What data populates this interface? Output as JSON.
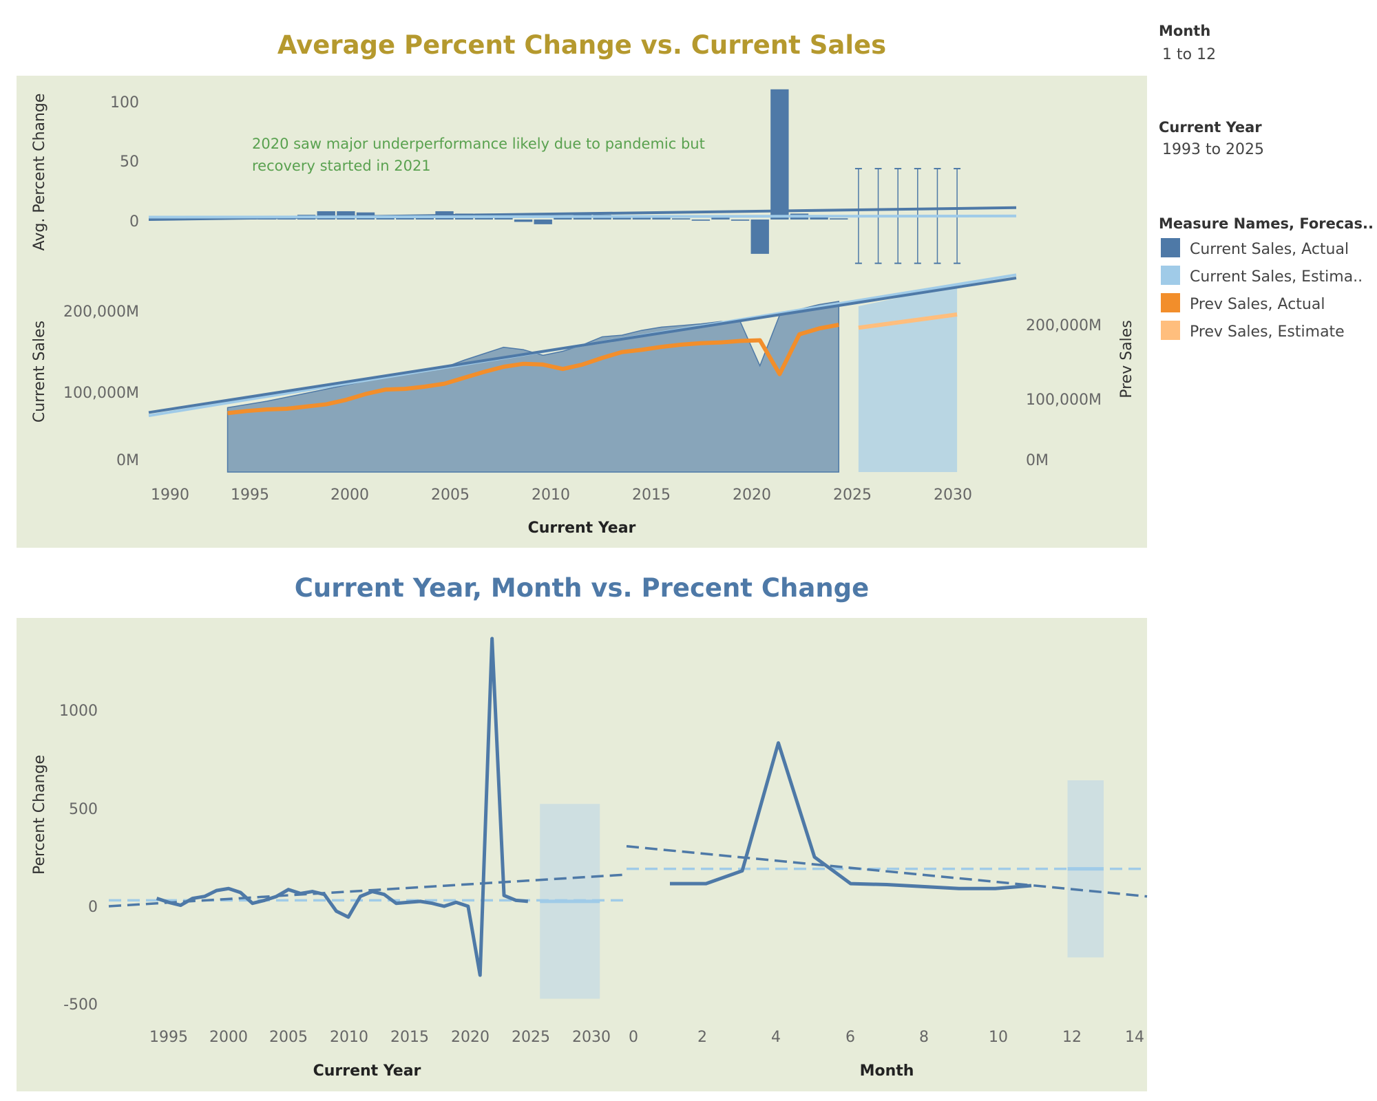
{
  "colors": {
    "panel_bg": "#e7ecd9",
    "title1": "#b5992e",
    "title2": "#4e79a7",
    "annotation": "#59a14f",
    "current_actual": "#4e79a7",
    "current_estimate": "#a0cbe8",
    "prev_actual": "#f28e2b",
    "prev_estimate": "#ffbe7d",
    "forecast_band": "#c3dae4"
  },
  "filters": {
    "month_title": "Month",
    "month_value": "1 to 12",
    "year_title": "Current Year",
    "year_value": "1993 to 2025"
  },
  "legend": {
    "title": "Measure Names, Forecas..",
    "items": [
      {
        "label": "Current Sales, Actual",
        "color": "#4e79a7"
      },
      {
        "label": "Current Sales, Estima..",
        "color": "#a0cbe8"
      },
      {
        "label": "Prev Sales, Actual",
        "color": "#f28e2b"
      },
      {
        "label": "Prev Sales, Estimate",
        "color": "#ffbe7d"
      }
    ]
  },
  "chart1": {
    "title": "Average Percent Change vs. Current Sales",
    "annotation_line1": "2020 saw major underperformance likely due to pandemic but",
    "annotation_line2": "recovery started in 2021",
    "top_ylabel": "Avg. Percent Change",
    "top_yticks": [
      "100",
      "50",
      "0"
    ],
    "bottom_ylabel": "Current Sales",
    "bottom_yticks": [
      "200,000M",
      "100,000M",
      "0M"
    ],
    "right_ylabel": "Prev Sales",
    "right_yticks": [
      "200,000M",
      "100,000M",
      "0M"
    ],
    "xlabel": "Current Year",
    "xticks": [
      "1990",
      "1995",
      "2000",
      "2005",
      "2010",
      "2015",
      "2020",
      "2025",
      "2030"
    ]
  },
  "chart2": {
    "title": "Current Year, Month  vs. Precent Change",
    "ylabel": "Percent Change",
    "yticks": [
      "1000",
      "500",
      "0",
      "-500"
    ],
    "left_xlabel": "Current Year",
    "left_xticks": [
      "1995",
      "2000",
      "2005",
      "2010",
      "2015",
      "2020",
      "2025",
      "2030"
    ],
    "right_xlabel": "Month",
    "right_xticks": [
      "0",
      "2",
      "4",
      "6",
      "8",
      "10",
      "12",
      "14"
    ]
  },
  "chart_data": [
    {
      "type": "bar",
      "title": "Average Percent Change vs. Current Sales",
      "panel": "top",
      "xlabel": "Current Year",
      "ylabel": "Avg. Percent Change",
      "xlim": [
        1989,
        2033
      ],
      "ylim": [
        -50,
        120
      ],
      "years": [
        1993,
        1994,
        1995,
        1996,
        1997,
        1998,
        1999,
        2000,
        2001,
        2002,
        2003,
        2004,
        2005,
        2006,
        2007,
        2008,
        2009,
        2010,
        2011,
        2012,
        2013,
        2014,
        2015,
        2016,
        2017,
        2018,
        2019,
        2020,
        2021,
        2022,
        2023,
        2024
      ],
      "avg_percent_change": [
        3,
        2,
        1,
        3,
        4,
        7,
        7,
        6,
        3,
        3,
        4,
        7,
        5,
        5,
        4,
        -2,
        -4,
        3,
        5,
        4,
        3,
        2,
        2,
        1,
        -1,
        2,
        -1,
        -29,
        110,
        5,
        2,
        1
      ],
      "forecast_years": [
        2025,
        2026,
        2027,
        2028,
        2029,
        2030
      ],
      "forecast_interval": [
        -37,
        43
      ],
      "series": [
        {
          "name": "Current Sales, Actual",
          "trend": [
            [
              1989,
              0
            ],
            [
              2033,
              10
            ]
          ]
        },
        {
          "name": "Current Sales, Estima..",
          "trend": [
            [
              1989,
              2
            ],
            [
              2033,
              3
            ]
          ]
        }
      ]
    },
    {
      "type": "area",
      "title": "Average Percent Change vs. Current Sales",
      "panel": "bottom",
      "xlabel": "Current Year",
      "ylabel": "Current Sales",
      "y2label": "Prev Sales",
      "units": "M",
      "xlim": [
        1989,
        2033
      ],
      "ylim": [
        0,
        232000
      ],
      "y2lim": [
        0,
        267000
      ],
      "series": [
        {
          "name": "Current Sales, Actual",
          "x": [
            1993,
            1994,
            1995,
            1996,
            1997,
            1998,
            1999,
            2000,
            2001,
            2002,
            2003,
            2004,
            2005,
            2006,
            2007,
            2008,
            2009,
            2010,
            2011,
            2012,
            2013,
            2014,
            2015,
            2016,
            2017,
            2018,
            2019,
            2020,
            2021,
            2022,
            2023,
            2024
          ],
          "y": [
            80000,
            84000,
            88000,
            93000,
            98000,
            103000,
            108000,
            113000,
            118000,
            122000,
            126000,
            130000,
            139000,
            147000,
            155000,
            152000,
            145000,
            150000,
            158000,
            168000,
            170000,
            176000,
            180000,
            182000,
            184000,
            187000,
            187000,
            132000,
            195000,
            202000,
            208000,
            212000
          ]
        },
        {
          "name": "Current Sales, Estima..",
          "x": [
            2025,
            2030
          ],
          "y": [
            206000,
            232000
          ],
          "band_low": [
            0,
            0
          ]
        },
        {
          "name": "Prev Sales, Actual",
          "x": [
            1993,
            1994,
            1995,
            1996,
            1997,
            1998,
            1999,
            2000,
            2001,
            2002,
            2003,
            2004,
            2005,
            2006,
            2007,
            2008,
            2009,
            2010,
            2011,
            2012,
            2013,
            2014,
            2015,
            2016,
            2017,
            2018,
            2019,
            2020,
            2021,
            2022,
            2023,
            2024
          ],
          "y": [
            80000,
            83000,
            85000,
            86000,
            89000,
            92000,
            98000,
            106000,
            112000,
            113000,
            116000,
            120000,
            128000,
            136000,
            143000,
            147000,
            146000,
            140000,
            146000,
            155000,
            163000,
            166000,
            170000,
            173000,
            175000,
            176000,
            178000,
            179000,
            133000,
            187000,
            195000,
            200000
          ]
        },
        {
          "name": "Prev Sales, Estimate",
          "x": [
            2025,
            2030
          ],
          "y": [
            196000,
            214000
          ]
        }
      ],
      "trend": [
        [
          1989,
          74000
        ],
        [
          2033,
          241000
        ]
      ],
      "trend_estimate": [
        [
          1989,
          70000
        ],
        [
          2033,
          245000
        ]
      ]
    },
    {
      "type": "line",
      "title": "Current Year, Month  vs. Precent Change",
      "xlabel": "Current Year",
      "ylabel": "Percent Change",
      "xlim": [
        1989,
        2032
      ],
      "ylim": [
        -580,
        1380
      ],
      "x": [
        1993,
        1994,
        1995,
        1996,
        1997,
        1998,
        1999,
        2000,
        2001,
        2002,
        2003,
        2004,
        2005,
        2006,
        2007,
        2008,
        2009,
        2010,
        2011,
        2012,
        2013,
        2014,
        2015,
        2016,
        2017,
        2018,
        2019,
        2020,
        2021,
        2022,
        2023,
        2024
      ],
      "y": [
        40,
        20,
        5,
        40,
        50,
        80,
        90,
        70,
        15,
        30,
        50,
        85,
        65,
        75,
        60,
        -25,
        -55,
        50,
        75,
        60,
        15,
        20,
        25,
        15,
        0,
        20,
        0,
        -350,
        1360,
        55,
        30,
        25
      ],
      "forecast_x": [
        2025,
        2030
      ],
      "forecast_band": [
        -470,
        520
      ],
      "forecast_y": 25,
      "trend": [
        [
          1989,
          0
        ],
        [
          2032,
          160
        ]
      ],
      "trend_estimate": [
        [
          1989,
          30
        ],
        [
          2032,
          30
        ]
      ]
    },
    {
      "type": "line",
      "title": "Current Year, Month  vs. Precent Change",
      "xlabel": "Month",
      "ylabel": "Percent Change",
      "xlim": [
        -0.2,
        14.2
      ],
      "ylim": [
        -580,
        1380
      ],
      "x": [
        1,
        2,
        3,
        4,
        5,
        6,
        7,
        8,
        9,
        10,
        11
      ],
      "y": [
        115,
        115,
        180,
        830,
        250,
        115,
        110,
        100,
        90,
        90,
        105
      ],
      "forecast_x": [
        12,
        13
      ],
      "forecast_band": [
        -260,
        640
      ],
      "forecast_y": 190,
      "trend": [
        [
          -0.2,
          305
        ],
        [
          14.2,
          50
        ]
      ],
      "trend_estimate": [
        [
          -0.2,
          190
        ],
        [
          14.2,
          190
        ]
      ]
    }
  ]
}
